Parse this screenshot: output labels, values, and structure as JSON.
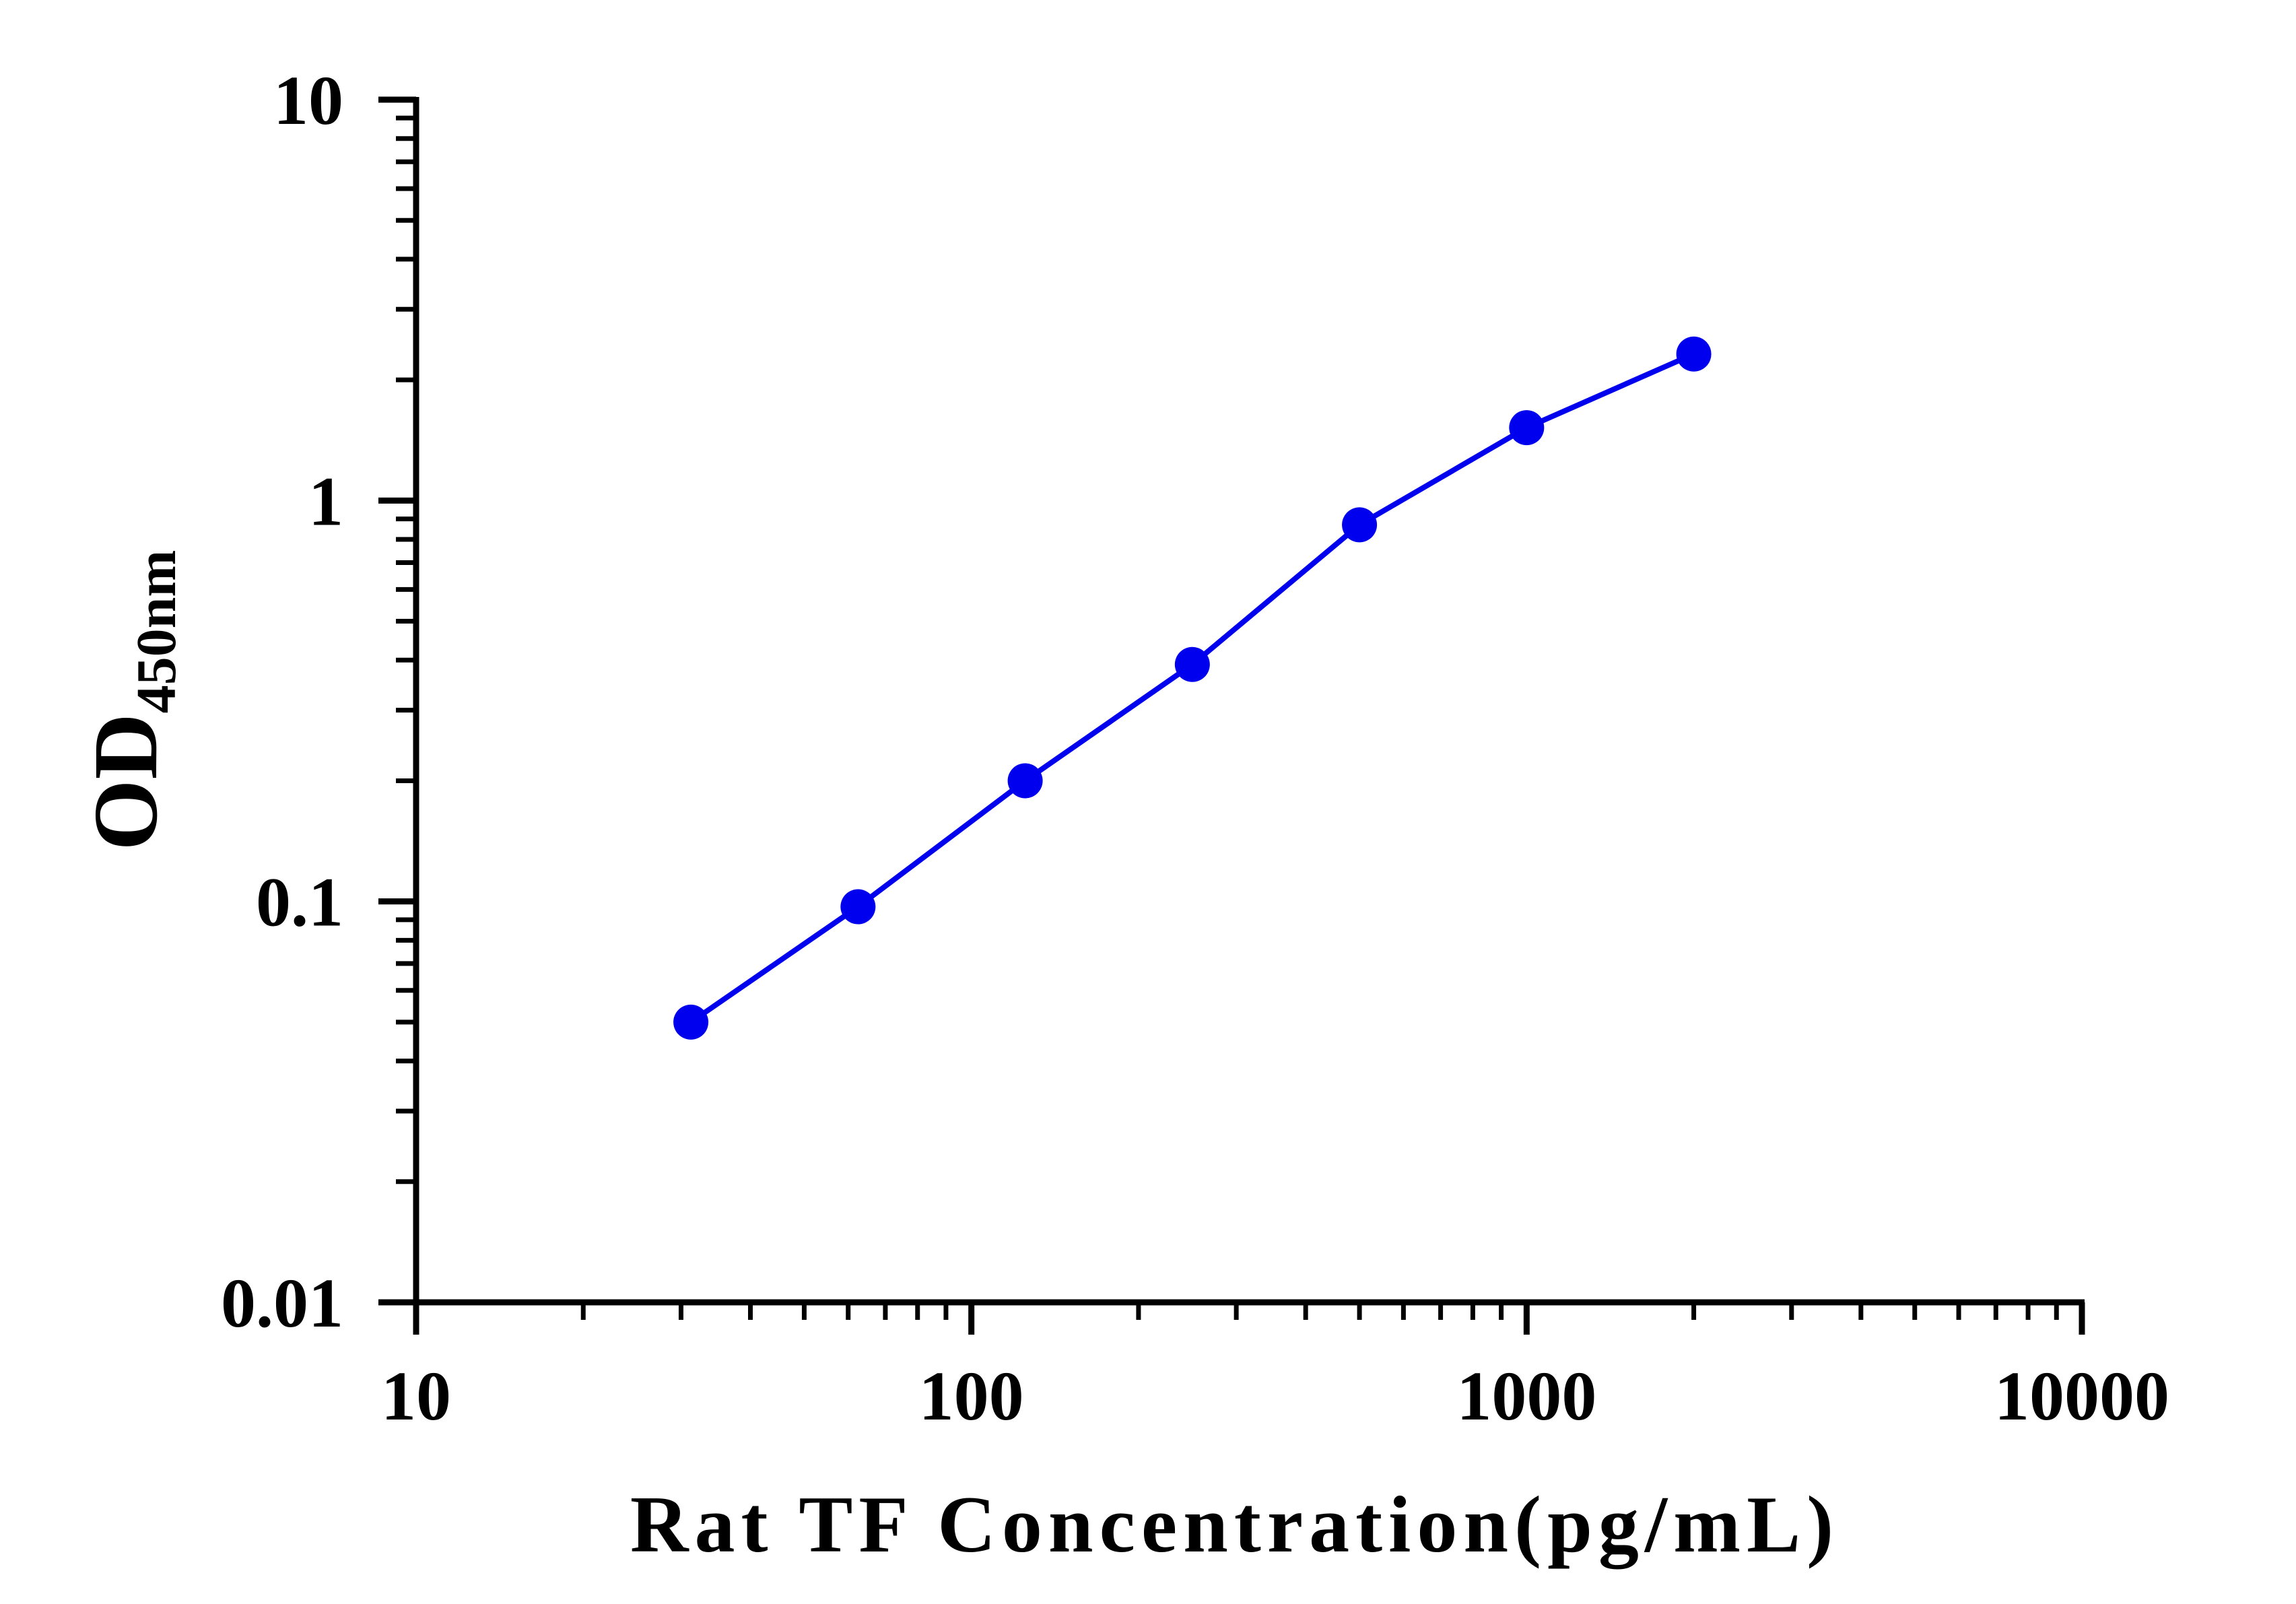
{
  "chart_data": {
    "type": "line",
    "xscale": "log",
    "yscale": "log",
    "xlim": [
      10,
      10000
    ],
    "ylim": [
      0.01,
      10
    ],
    "xticks": [
      "10",
      "100",
      "1000",
      "10000"
    ],
    "yticks": [
      "0.01",
      "0.1",
      "1",
      "10"
    ],
    "xlabel": "Rat TF Concentration(pg/mL)",
    "ylabel_main": "OD",
    "ylabel_sub": "450nm",
    "grid": false,
    "series": [
      {
        "color": "#0000ee",
        "marker": "circle",
        "x": [
          31.25,
          62.5,
          125,
          250,
          500,
          1000,
          2000
        ],
        "y": [
          0.05,
          0.097,
          0.2,
          0.39,
          0.87,
          1.52,
          2.32
        ]
      }
    ]
  }
}
